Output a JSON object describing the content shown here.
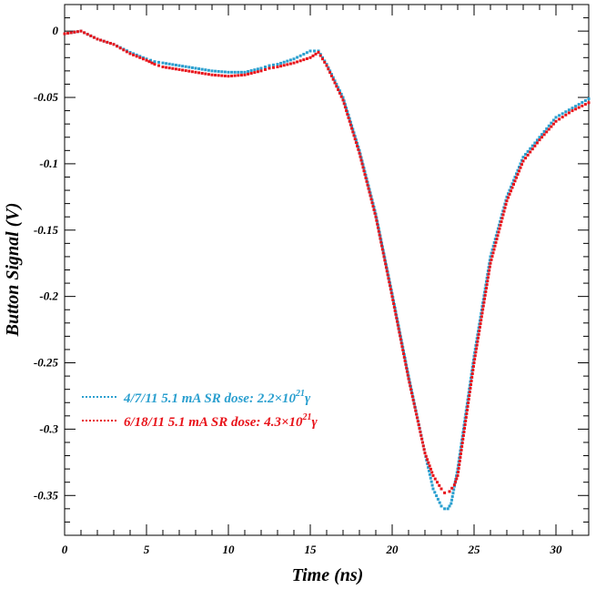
{
  "colors": {
    "series_a": "#2a9fcf",
    "series_b": "#e8131a",
    "axis": "#000000",
    "background": "#ffffff"
  },
  "chart_data": {
    "type": "line",
    "xlabel": "Time (ns)",
    "ylabel": "Button Signal (V)",
    "xlim": [
      0,
      32
    ],
    "ylim": [
      -0.38,
      0.02
    ],
    "xticks": [
      0,
      5,
      10,
      15,
      20,
      25,
      30
    ],
    "xtick_labels": [
      "0",
      "5",
      "10",
      "15",
      "20",
      "25",
      "30"
    ],
    "yticks": [
      0,
      -0.05,
      -0.1,
      -0.15,
      -0.2,
      -0.25,
      -0.3,
      -0.35
    ],
    "ytick_labels": [
      "0",
      "-0.05",
      "-0.1",
      "-0.15",
      "-0.2",
      "-0.25",
      "-0.3",
      "-0.35"
    ],
    "grid": false,
    "legend_position": "bottom-left",
    "series": [
      {
        "name": "4/7/11 5.1 mA  SR dose: 2.2×10²¹γ",
        "legend_main": "4/7/11 5.1 mA  SR dose: 2.2×10",
        "legend_exp": "21",
        "legend_tail": "γ",
        "color": "#2a9fcf",
        "x": [
          0,
          1,
          2,
          3,
          4,
          5,
          5.5,
          6,
          7,
          8,
          9,
          10,
          11,
          12,
          12.5,
          13,
          14,
          15,
          15.5,
          16,
          17,
          18,
          19,
          20,
          21,
          22,
          22.5,
          23,
          23.2,
          23.4,
          23.6,
          24,
          25,
          26,
          27,
          28,
          29,
          30,
          31,
          32
        ],
        "y": [
          -0.002,
          0,
          -0.006,
          -0.01,
          -0.016,
          -0.021,
          -0.023,
          -0.024,
          -0.026,
          -0.028,
          -0.03,
          -0.031,
          -0.031,
          -0.028,
          -0.026,
          -0.025,
          -0.021,
          -0.015,
          -0.015,
          -0.025,
          -0.05,
          -0.09,
          -0.138,
          -0.198,
          -0.26,
          -0.318,
          -0.345,
          -0.358,
          -0.36,
          -0.36,
          -0.356,
          -0.33,
          -0.245,
          -0.17,
          -0.125,
          -0.095,
          -0.08,
          -0.065,
          -0.058,
          -0.051
        ]
      },
      {
        "name": "6/18/11 5.1 mA  SR dose: 4.3×10²¹γ",
        "legend_main": "6/18/11 5.1 mA  SR dose: 4.3×10",
        "legend_exp": "21",
        "legend_tail": "γ",
        "color": "#e8131a",
        "x": [
          0,
          1,
          2,
          3,
          4,
          5,
          5.5,
          6,
          7,
          8,
          9,
          10,
          11,
          12,
          12.5,
          13,
          14,
          15,
          15.5,
          16,
          17,
          18,
          19,
          20,
          21,
          22,
          22.5,
          23,
          23.2,
          23.5,
          23.8,
          24,
          25,
          26,
          27,
          28,
          29,
          30,
          31,
          32
        ],
        "y": [
          -0.002,
          0,
          -0.006,
          -0.01,
          -0.017,
          -0.022,
          -0.025,
          -0.027,
          -0.029,
          -0.031,
          -0.033,
          -0.034,
          -0.033,
          -0.03,
          -0.028,
          -0.027,
          -0.024,
          -0.02,
          -0.016,
          -0.026,
          -0.052,
          -0.092,
          -0.14,
          -0.2,
          -0.262,
          -0.318,
          -0.335,
          -0.345,
          -0.348,
          -0.347,
          -0.342,
          -0.335,
          -0.25,
          -0.175,
          -0.128,
          -0.098,
          -0.082,
          -0.068,
          -0.06,
          -0.054
        ]
      }
    ]
  }
}
